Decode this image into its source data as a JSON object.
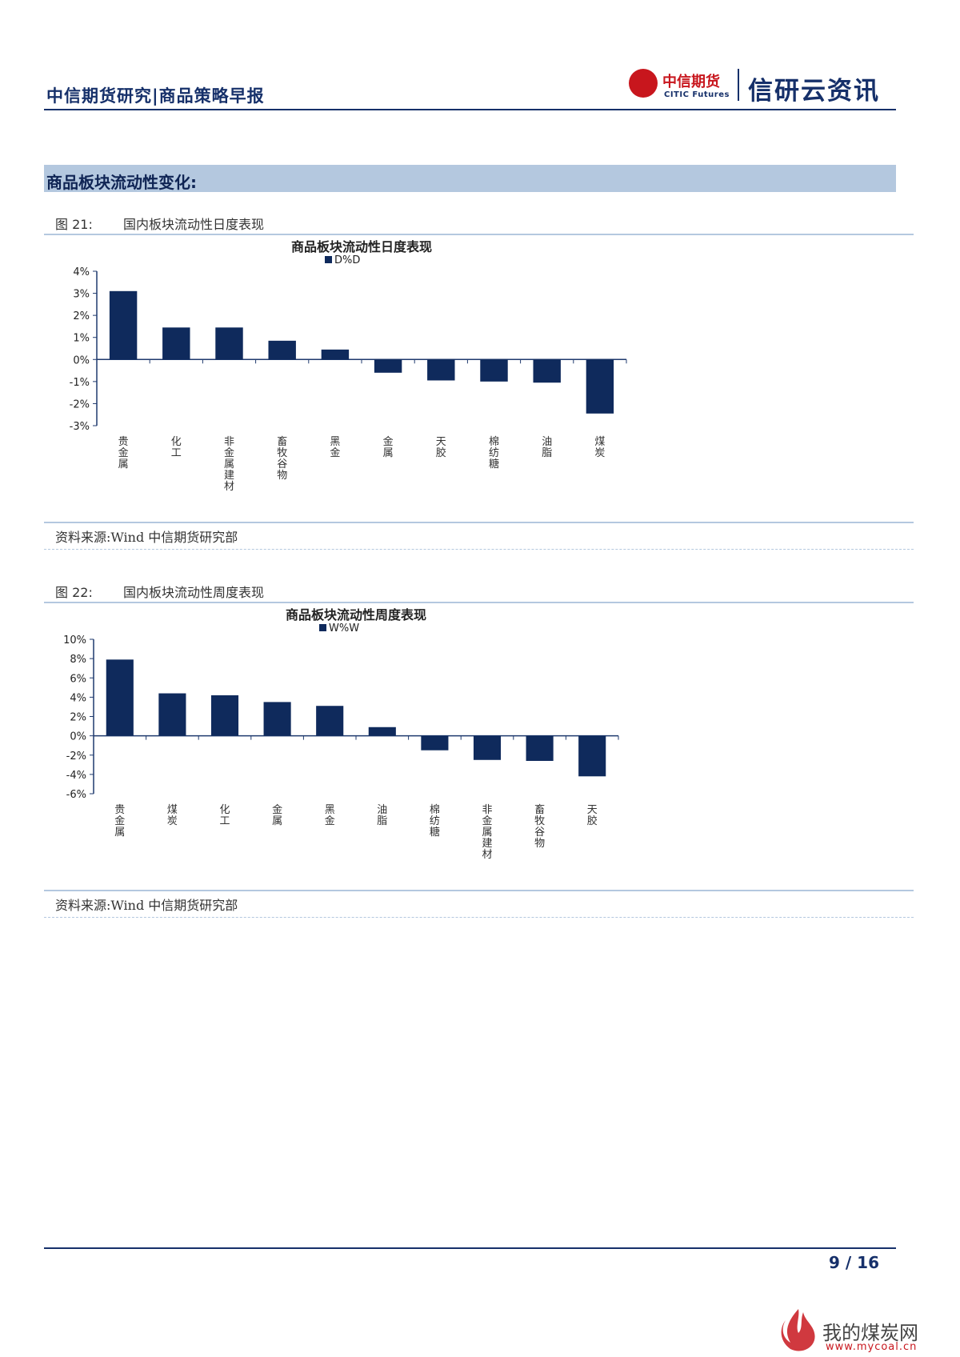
{
  "header": {
    "title": "中信期货研究|商品策略早报",
    "logo_cn": "中信期货",
    "logo_en": "CITIC Futures",
    "brand": "信研云资讯"
  },
  "section": {
    "title": "商品板块流动性变化:"
  },
  "figures": [
    {
      "num": "图 21:",
      "label": "国内板块流动性日度表现",
      "source": "资料来源:Wind 中信期货研究部"
    },
    {
      "num": "图 22:",
      "label": "国内板块流动性周度表现",
      "source": "资料来源:Wind 中信期货研究部"
    }
  ],
  "chart_data": [
    {
      "type": "bar",
      "title": "商品板块流动性日度表现",
      "series": [
        {
          "name": "D%D",
          "values": [
            3.1,
            1.45,
            1.45,
            0.85,
            0.45,
            -0.6,
            -0.95,
            -1.0,
            -1.05,
            -2.45
          ],
          "color": "#0f2a5c"
        }
      ],
      "categories": [
        "贵金属",
        "化工",
        "非金属建材",
        "畜牧谷物",
        "黑金",
        "金属",
        "天胶",
        "棉纺糖",
        "油脂",
        "煤炭"
      ],
      "yticks": [
        "4%",
        "3%",
        "2%",
        "1%",
        "0%",
        "-1%",
        "-2%",
        "-3%"
      ],
      "ylim": [
        -3,
        4
      ],
      "legend": "top"
    },
    {
      "type": "bar",
      "title": "商品板块流动性周度表现",
      "series": [
        {
          "name": "W%W",
          "values": [
            7.9,
            4.4,
            4.2,
            3.5,
            3.1,
            0.9,
            -1.5,
            -2.5,
            -2.6,
            -4.2
          ],
          "color": "#0f2a5c"
        }
      ],
      "categories": [
        "贵金属",
        "煤炭",
        "化工",
        "金属",
        "黑金",
        "油脂",
        "棉纺糖",
        "非金属建材",
        "畜牧谷物",
        "天胶"
      ],
      "yticks": [
        "10%",
        "8%",
        "6%",
        "4%",
        "2%",
        "0%",
        "-2%",
        "-4%",
        "-6%"
      ],
      "ylim": [
        -6,
        10
      ],
      "legend": "top"
    }
  ],
  "footer": {
    "page": "9 / 16"
  },
  "watermark": {
    "text": "我的煤炭网",
    "url": "www.mycoal.cn"
  }
}
